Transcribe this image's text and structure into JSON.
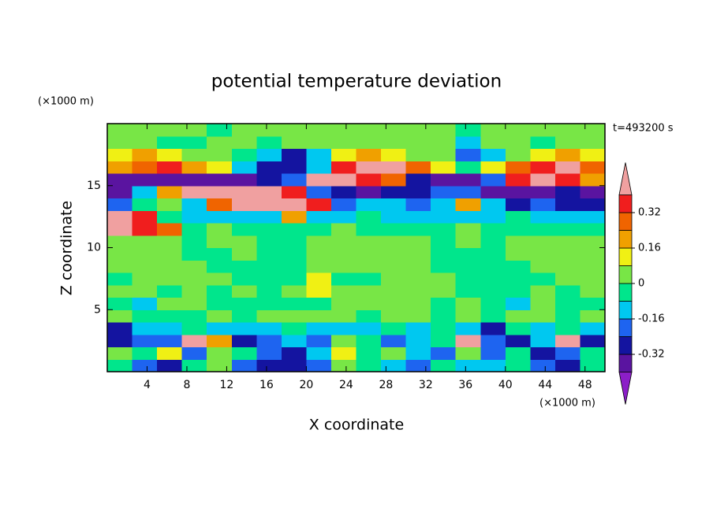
{
  "chart_data": {
    "type": "contour",
    "title": "potential temperature deviation",
    "x_label": "X coordinate",
    "y_label": "Z coordinate",
    "x_unit": "(×1000 m)",
    "y_unit": "(×1000 m)",
    "annotation": "t=493200 s",
    "xlim": [
      0,
      50
    ],
    "ylim": [
      0,
      20
    ],
    "xticks": [
      4,
      8,
      12,
      16,
      20,
      24,
      28,
      32,
      36,
      40,
      44,
      48
    ],
    "yticks": [
      5,
      10,
      15
    ],
    "levels": [
      -0.4,
      -0.32,
      -0.24,
      -0.16,
      -0.08,
      0,
      0.08,
      0.16,
      0.24,
      0.32,
      0.4
    ],
    "colors": [
      "#8c1ec8",
      "#5a14a0",
      "#1414a0",
      "#1e64f0",
      "#00c8f0",
      "#00e68c",
      "#78e646",
      "#f0f014",
      "#f0a000",
      "#f06400",
      "#f01e1e",
      "#f0a0a0"
    ],
    "colorbar_ticks": [
      -0.32,
      -0.16,
      0,
      0.16,
      0.32
    ],
    "x": [
      1.25,
      3.75,
      6.25,
      8.75,
      11.25,
      13.75,
      16.25,
      18.75,
      21.25,
      23.75,
      26.25,
      28.75,
      31.25,
      33.75,
      36.25,
      38.75,
      41.25,
      43.75,
      46.25,
      48.75
    ],
    "y": [
      0.5,
      1.5,
      2.5,
      3.5,
      4.5,
      5.5,
      6.5,
      7.5,
      8.5,
      9.5,
      10.5,
      11.5,
      12.5,
      13.5,
      14.5,
      15.5,
      16.5,
      17.5,
      18.5,
      19.5
    ],
    "z": [
      [
        -0.04,
        -0.2,
        -0.28,
        -0.04,
        0.04,
        -0.2,
        -0.28,
        -0.28,
        -0.2,
        0.04,
        -0.04,
        -0.12,
        -0.2,
        -0.04,
        -0.12,
        -0.12,
        -0.04,
        -0.2,
        -0.28,
        -0.04
      ],
      [
        0.04,
        -0.04,
        0.12,
        -0.2,
        0.04,
        -0.04,
        -0.2,
        -0.28,
        -0.12,
        0.12,
        -0.04,
        0.04,
        -0.12,
        -0.2,
        0.04,
        -0.2,
        -0.04,
        -0.28,
        -0.2,
        -0.04
      ],
      [
        -0.28,
        -0.2,
        -0.2,
        0.44,
        0.2,
        -0.28,
        -0.2,
        -0.12,
        -0.2,
        0.04,
        -0.04,
        -0.2,
        -0.12,
        -0.04,
        0.44,
        -0.2,
        -0.28,
        -0.12,
        0.44,
        -0.28
      ],
      [
        -0.28,
        -0.12,
        -0.12,
        -0.04,
        -0.12,
        -0.12,
        -0.12,
        -0.04,
        -0.12,
        -0.12,
        -0.12,
        -0.04,
        -0.12,
        -0.04,
        -0.12,
        -0.28,
        -0.04,
        -0.12,
        -0.04,
        -0.12
      ],
      [
        0.04,
        -0.04,
        -0.04,
        -0.04,
        0.04,
        -0.04,
        0.04,
        0.04,
        0.04,
        0.04,
        -0.04,
        0.04,
        0.04,
        -0.04,
        0.04,
        -0.04,
        0.04,
        0.04,
        -0.04,
        0.04
      ],
      [
        -0.04,
        -0.12,
        0.04,
        0.04,
        -0.04,
        -0.04,
        -0.04,
        -0.04,
        -0.04,
        0.04,
        0.04,
        0.04,
        0.04,
        -0.04,
        0.04,
        -0.04,
        -0.12,
        0.04,
        -0.04,
        -0.04
      ],
      [
        0.04,
        0.04,
        -0.04,
        0.04,
        -0.04,
        0.04,
        -0.04,
        0.04,
        0.12,
        0.04,
        0.04,
        0.04,
        0.04,
        0.04,
        -0.04,
        -0.04,
        -0.04,
        0.04,
        -0.04,
        0.04
      ],
      [
        -0.04,
        0.04,
        0.04,
        0.04,
        0.04,
        -0.04,
        -0.04,
        -0.04,
        0.12,
        -0.04,
        -0.04,
        0.04,
        0.04,
        0.04,
        -0.04,
        -0.04,
        -0.04,
        -0.04,
        0.04,
        0.04
      ],
      [
        0.04,
        0.04,
        0.04,
        0.04,
        -0.04,
        -0.04,
        -0.04,
        -0.04,
        0.04,
        0.04,
        0.04,
        0.04,
        0.04,
        -0.04,
        -0.04,
        -0.04,
        -0.04,
        0.04,
        0.04,
        0.04
      ],
      [
        0.04,
        0.04,
        0.04,
        -0.04,
        -0.04,
        0.04,
        -0.04,
        -0.04,
        0.04,
        0.04,
        0.04,
        0.04,
        0.04,
        -0.04,
        -0.04,
        -0.04,
        0.04,
        0.04,
        0.04,
        0.04
      ],
      [
        0.04,
        0.04,
        0.04,
        -0.04,
        0.04,
        0.04,
        -0.04,
        -0.04,
        0.04,
        0.04,
        0.04,
        0.04,
        0.04,
        -0.04,
        0.04,
        -0.04,
        0.04,
        0.04,
        0.04,
        0.04
      ],
      [
        0.44,
        0.36,
        0.28,
        -0.04,
        0.04,
        -0.04,
        -0.04,
        -0.04,
        -0.04,
        0.04,
        -0.04,
        -0.04,
        -0.04,
        -0.04,
        0.04,
        -0.04,
        -0.04,
        -0.04,
        -0.04,
        -0.04
      ],
      [
        0.44,
        0.36,
        -0.04,
        -0.12,
        -0.12,
        -0.12,
        -0.12,
        0.2,
        -0.12,
        -0.12,
        -0.04,
        -0.12,
        -0.12,
        -0.12,
        -0.12,
        -0.12,
        -0.04,
        -0.12,
        -0.12,
        -0.12
      ],
      [
        -0.2,
        -0.04,
        0.04,
        -0.12,
        0.28,
        0.44,
        0.44,
        0.44,
        0.36,
        -0.2,
        -0.12,
        -0.12,
        -0.2,
        -0.12,
        0.2,
        -0.12,
        -0.28,
        -0.2,
        -0.28,
        -0.28
      ],
      [
        -0.36,
        -0.12,
        0.2,
        0.44,
        0.44,
        0.44,
        0.44,
        0.36,
        -0.2,
        -0.28,
        -0.36,
        -0.28,
        -0.28,
        -0.2,
        -0.2,
        -0.36,
        -0.36,
        -0.36,
        -0.28,
        -0.36
      ],
      [
        -0.36,
        -0.36,
        -0.36,
        -0.36,
        -0.36,
        -0.36,
        -0.28,
        -0.2,
        0.44,
        0.44,
        0.36,
        0.28,
        -0.28,
        -0.36,
        -0.36,
        -0.2,
        0.36,
        0.44,
        0.36,
        0.2
      ],
      [
        0.2,
        0.28,
        0.36,
        0.2,
        0.12,
        -0.12,
        -0.28,
        -0.28,
        -0.12,
        0.36,
        0.44,
        0.44,
        0.28,
        0.12,
        -0.04,
        0.12,
        0.28,
        0.36,
        0.44,
        0.28
      ],
      [
        0.12,
        0.2,
        0.12,
        0.04,
        0.04,
        -0.04,
        -0.12,
        -0.28,
        -0.12,
        0.12,
        0.2,
        0.12,
        0.04,
        0.04,
        -0.2,
        -0.12,
        0.04,
        0.12,
        0.2,
        0.12
      ],
      [
        0.04,
        0.04,
        -0.04,
        -0.04,
        0.04,
        0.04,
        -0.04,
        0.04,
        0.04,
        0.04,
        0.04,
        0.04,
        0.04,
        0.04,
        -0.12,
        0.04,
        0.04,
        -0.04,
        0.04,
        0.04
      ],
      [
        0.04,
        0.04,
        0.04,
        0.04,
        -0.04,
        0.04,
        0.04,
        0.04,
        0.04,
        0.04,
        0.04,
        0.04,
        0.04,
        0.04,
        -0.04,
        0.04,
        0.04,
        0.04,
        0.04,
        0.04
      ]
    ]
  }
}
